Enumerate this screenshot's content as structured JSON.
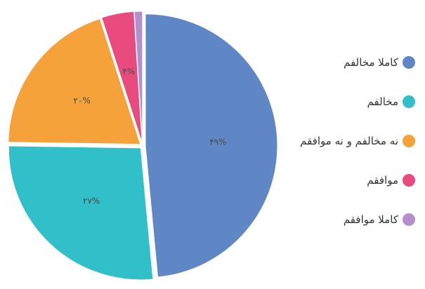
{
  "chart_data": {
    "type": "pie",
    "categories": [
      "کاملا مخالفم",
      "مخالفم",
      "نه مخالفم و نه موافقم",
      "موافقم",
      "کاملا موافقم"
    ],
    "values": [
      49,
      27,
      20,
      4,
      1
    ],
    "labels": [
      "۴۹%",
      "۲۷%",
      "۲۰%",
      "۴%",
      ""
    ],
    "colors": [
      "#5f87c6",
      "#31c0c9",
      "#f6a23a",
      "#ea4b7f",
      "#b48fce"
    ],
    "legend_position": "right"
  }
}
